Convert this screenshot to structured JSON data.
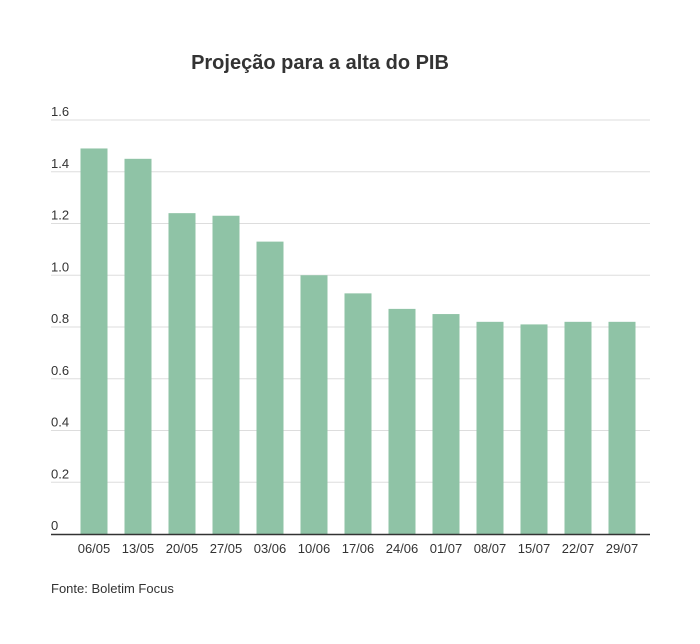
{
  "chart_data": {
    "type": "bar",
    "title": "Projeção para a alta do PIB",
    "xlabel": "",
    "ylabel": "",
    "categories": [
      "06/05",
      "13/05",
      "20/05",
      "27/05",
      "03/06",
      "10/06",
      "17/06",
      "24/06",
      "01/07",
      "08/07",
      "15/07",
      "22/07",
      "29/07"
    ],
    "values": [
      1.49,
      1.45,
      1.24,
      1.23,
      1.13,
      1.0,
      0.93,
      0.87,
      0.85,
      0.82,
      0.81,
      0.82,
      0.82
    ],
    "ylim": [
      0,
      1.6
    ],
    "yticks": [
      "0",
      "0.2",
      "0.4",
      "0.6",
      "0.8",
      "1.0",
      "1.2",
      "1.4",
      "1.6"
    ],
    "grid": true,
    "legend": "none",
    "bar_color": "#8fc3a6",
    "grid_color": "#dddddd",
    "axis_color": "#333333"
  },
  "footer": {
    "source": "Fonte: Boletim Focus"
  }
}
